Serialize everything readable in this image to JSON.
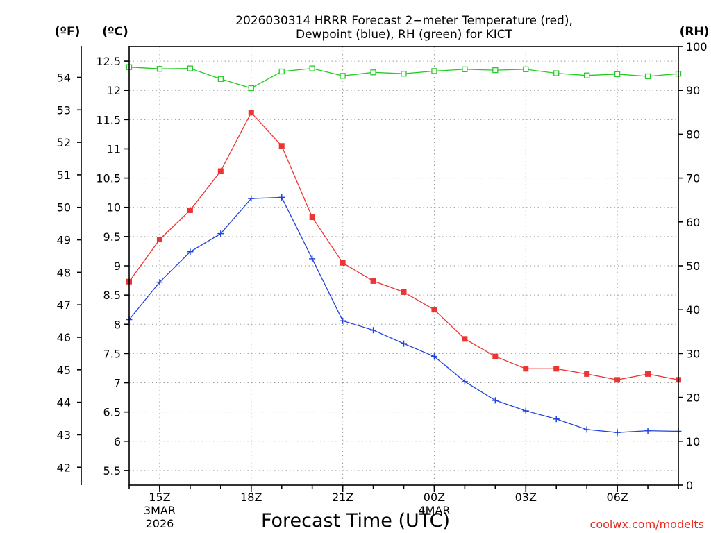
{
  "title": {
    "line1": "2026030314 HRRR Forecast 2−meter Temperature (red),",
    "line2": "Dewpoint (blue), RH (green) for KICT"
  },
  "units": {
    "f": "(ºF)",
    "c": "(ºC)",
    "rh": "(RH)"
  },
  "xlabel": "Forecast Time (UTC)",
  "credit": "coolwx.com/modelts",
  "colors": {
    "temperature": "#ee3333",
    "dewpoint": "#2244dd",
    "rh": "#22cc22",
    "grid": "#9a9a9a",
    "credit": "#e8281c"
  },
  "chart_data": {
    "type": "line",
    "title": "2026030314 HRRR Forecast 2-meter Temperature (red), Dewpoint (blue), RH (green) for KICT",
    "xlabel": "Forecast Time (UTC)",
    "x_hours": [
      14,
      15,
      16,
      17,
      18,
      19,
      20,
      21,
      22,
      23,
      24,
      25,
      26,
      27,
      28,
      29,
      30,
      31,
      32
    ],
    "xlim": [
      14,
      32
    ],
    "x_ticks": [
      {
        "hour": 15,
        "label": "15Z",
        "sub1": "3MAR",
        "sub2": "2026"
      },
      {
        "hour": 18,
        "label": "18Z",
        "sub1": "",
        "sub2": ""
      },
      {
        "hour": 21,
        "label": "21Z",
        "sub1": "",
        "sub2": ""
      },
      {
        "hour": 24,
        "label": "00Z",
        "sub1": "4MAR",
        "sub2": ""
      },
      {
        "hour": 27,
        "label": "03Z",
        "sub1": "",
        "sub2": ""
      },
      {
        "hour": 30,
        "label": "06Z",
        "sub1": "",
        "sub2": ""
      }
    ],
    "axes": {
      "celsius": {
        "lim": [
          5.25,
          12.75
        ],
        "ticks": [
          "5.5",
          "6",
          "6.5",
          "7",
          "7.5",
          "8",
          "8.5",
          "9",
          "9.5",
          "10",
          "10.5",
          "11",
          "11.5",
          "12",
          "12.5"
        ]
      },
      "fahrenheit": {
        "lim": [
          41.45,
          54.95
        ],
        "ticks": [
          "42",
          "43",
          "44",
          "45",
          "46",
          "47",
          "48",
          "49",
          "50",
          "51",
          "52",
          "53",
          "54"
        ]
      },
      "rh": {
        "lim": [
          0,
          100
        ],
        "ticks": [
          "0",
          "10",
          "20",
          "30",
          "40",
          "50",
          "60",
          "70",
          "80",
          "90",
          "100"
        ]
      }
    },
    "series": [
      {
        "name": "Temperature",
        "unit": "C",
        "marker": "square",
        "color": "#ee3333",
        "values": [
          8.73,
          9.45,
          9.95,
          10.62,
          11.62,
          11.05,
          9.83,
          9.05,
          8.74,
          8.55,
          8.25,
          7.75,
          7.45,
          7.24,
          7.24,
          7.15,
          7.05,
          7.15,
          7.05
        ]
      },
      {
        "name": "Dewpoint",
        "unit": "C",
        "marker": "plus",
        "color": "#2244dd",
        "values": [
          8.08,
          8.72,
          9.24,
          9.55,
          10.15,
          10.17,
          9.12,
          8.06,
          7.9,
          7.67,
          7.45,
          7.02,
          6.7,
          6.52,
          6.38,
          6.2,
          6.15,
          6.18,
          6.17
        ]
      },
      {
        "name": "RH",
        "unit": "%",
        "marker": "open-square",
        "color": "#22cc22",
        "values": [
          95.3,
          94.9,
          95.0,
          92.6,
          90.5,
          94.3,
          95.0,
          93.3,
          94.1,
          93.8,
          94.4,
          94.8,
          94.6,
          94.8,
          93.9,
          93.4,
          93.7,
          93.2,
          93.8
        ]
      }
    ]
  }
}
